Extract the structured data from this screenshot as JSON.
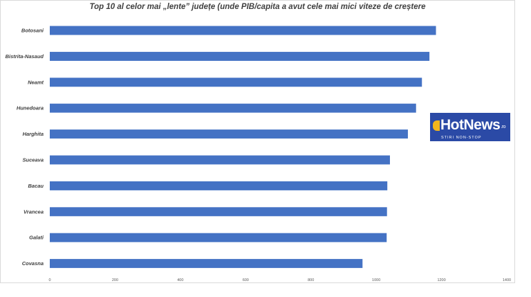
{
  "chart_data": {
    "type": "bar",
    "orientation": "horizontal",
    "title": "Top 10 al celor mai „lente” județe  (unde PIB/capita a avut cele mai mici viteze de creștere",
    "categories": [
      "Botosani",
      "Bistrita-Nasaud",
      "Neamt",
      "Hunedoara",
      "Harghita",
      "Suceava",
      "Bacau",
      "Vrancea",
      "Galati",
      "Covasna"
    ],
    "values": [
      1183,
      1163,
      1140,
      1122,
      1097,
      1042,
      1034,
      1033,
      1032,
      958
    ],
    "xlim": [
      0,
      1400
    ],
    "xticks": [
      "0",
      "200",
      "400",
      "600",
      "800",
      "1000",
      "1200",
      "1400"
    ],
    "bar_color": "#4472c4",
    "grid": false,
    "legend": "none"
  },
  "logo": {
    "name": "HotNews",
    "suffix": ".ro",
    "tagline": "STIRI NON-STOP",
    "background": "#2b4aa6",
    "accent": "#f3b51c"
  }
}
